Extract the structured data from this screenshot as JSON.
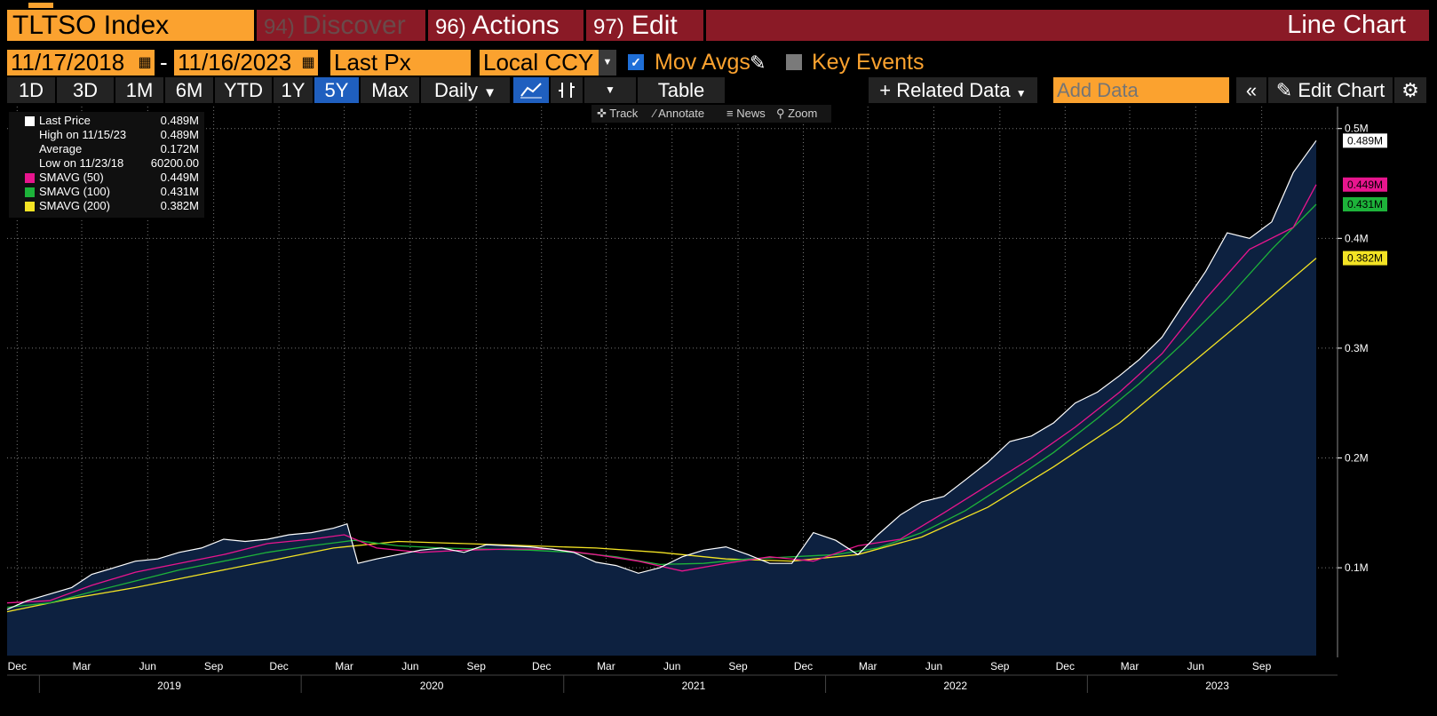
{
  "header": {
    "ticker": "TLTSO Index",
    "menus": [
      {
        "num": "94)",
        "label": "Discover"
      },
      {
        "num": "96)",
        "label": "Actions"
      },
      {
        "num": "97)",
        "label": "Edit"
      }
    ],
    "chart_type": "Line Chart"
  },
  "controls": {
    "start_date": "11/17/2018",
    "dash": "-",
    "end_date": "11/16/2023",
    "field": "Last Px",
    "currency": "Local CCY",
    "mov_avgs_label": "Mov Avgs",
    "mov_avgs_checked": true,
    "key_events_label": "Key Events",
    "key_events_checked": false
  },
  "toolbar": {
    "ranges": [
      "1D",
      "3D",
      "1M",
      "6M",
      "YTD",
      "1Y",
      "5Y",
      "Max"
    ],
    "active_range": "5Y",
    "frequency": "Daily",
    "table_label": "Table",
    "related_data": "+ Related Data",
    "add_data_placeholder": "Add Data",
    "edit_chart": "Edit Chart"
  },
  "chart_tools": [
    "Track",
    "Annotate",
    "News",
    "Zoom"
  ],
  "colors": {
    "accent": "#fba22f",
    "menu_bg": "#8a1a26",
    "area_fill": "#0d2140",
    "price_line": "#ffffff",
    "sma50": "#e8158e",
    "sma100": "#1db33a",
    "sma200": "#f3e324"
  },
  "chart_data": {
    "type": "line",
    "x_range": [
      "2018-11-17",
      "2023-11-16"
    ],
    "ylim": [
      20000,
      520000
    ],
    "y_ticks": [
      "0.5M",
      "0.4M",
      "0.3M",
      "0.2M",
      "0.1M"
    ],
    "y_tick_values": [
      500000,
      400000,
      300000,
      200000,
      100000
    ],
    "x_tick_labels": [
      "Dec",
      "Mar",
      "Jun",
      "Sep",
      "Dec",
      "Mar",
      "Jun",
      "Sep",
      "Dec",
      "Mar",
      "Jun",
      "Sep",
      "Dec",
      "Mar",
      "Jun",
      "Sep",
      "Dec",
      "Mar",
      "Jun",
      "Sep"
    ],
    "x_tick_dates": [
      "2018-12-01",
      "2019-03-01",
      "2019-06-01",
      "2019-09-01",
      "2019-12-01",
      "2020-03-01",
      "2020-06-01",
      "2020-09-01",
      "2020-12-01",
      "2021-03-01",
      "2021-06-01",
      "2021-09-01",
      "2021-12-01",
      "2022-03-01",
      "2022-06-01",
      "2022-09-01",
      "2022-12-01",
      "2023-03-01",
      "2023-06-01",
      "2023-09-01"
    ],
    "year_labels": [
      "2019",
      "2020",
      "2021",
      "2022",
      "2023"
    ],
    "year_label_dates": [
      "2019-07-01",
      "2020-07-01",
      "2021-07-01",
      "2022-07-01",
      "2023-07-01"
    ],
    "legend": [
      {
        "name": "Last Price",
        "value": "0.489M"
      },
      {
        "name": "High on 11/15/23",
        "value": "0.489M"
      },
      {
        "name": "Average",
        "value": "0.172M"
      },
      {
        "name": "Low on 11/23/18",
        "value": "60200.00"
      },
      {
        "name": "SMAVG (50)",
        "value": "0.449M"
      },
      {
        "name": "SMAVG (100)",
        "value": "0.431M"
      },
      {
        "name": "SMAVG (200)",
        "value": "0.382M"
      }
    ],
    "last_labels": [
      {
        "series": "Last Price",
        "text": "0.489M",
        "value": 489000
      },
      {
        "series": "SMAVG (50)",
        "text": "0.449M",
        "value": 449000
      },
      {
        "series": "SMAVG (100)",
        "text": "0.431M",
        "value": 431000
      },
      {
        "series": "SMAVG (200)",
        "text": "0.382M",
        "value": 382000
      }
    ],
    "series": [
      {
        "name": "Last Price",
        "x": [
          "2018-11-17",
          "2018-12-15",
          "2019-01-15",
          "2019-02-15",
          "2019-03-15",
          "2019-04-15",
          "2019-05-15",
          "2019-06-15",
          "2019-07-15",
          "2019-08-15",
          "2019-09-15",
          "2019-10-15",
          "2019-11-15",
          "2019-12-15",
          "2020-01-15",
          "2020-02-15",
          "2020-03-05",
          "2020-03-20",
          "2020-04-15",
          "2020-05-15",
          "2020-06-15",
          "2020-07-15",
          "2020-08-15",
          "2020-09-15",
          "2020-10-15",
          "2020-11-15",
          "2020-12-15",
          "2021-01-15",
          "2021-02-15",
          "2021-03-15",
          "2021-04-15",
          "2021-05-15",
          "2021-06-15",
          "2021-07-15",
          "2021-08-15",
          "2021-09-15",
          "2021-10-15",
          "2021-11-15",
          "2021-12-15",
          "2022-01-15",
          "2022-02-15",
          "2022-03-15",
          "2022-04-15",
          "2022-05-15",
          "2022-06-15",
          "2022-07-15",
          "2022-08-15",
          "2022-09-15",
          "2022-10-15",
          "2022-11-15",
          "2022-12-15",
          "2023-01-15",
          "2023-02-15",
          "2023-03-15",
          "2023-04-15",
          "2023-05-15",
          "2023-06-15",
          "2023-07-15",
          "2023-08-15",
          "2023-09-15",
          "2023-10-15",
          "2023-11-16"
        ],
        "y": [
          62000,
          70000,
          76000,
          82000,
          94000,
          100000,
          106000,
          108000,
          114000,
          118000,
          126000,
          124000,
          126000,
          130000,
          132000,
          136000,
          140000,
          104000,
          108000,
          112000,
          116000,
          118000,
          114000,
          121000,
          120000,
          119000,
          117000,
          114000,
          105000,
          102000,
          95000,
          100000,
          110000,
          116000,
          119000,
          112000,
          104000,
          104000,
          132000,
          125000,
          112000,
          130000,
          148000,
          160000,
          165000,
          180000,
          196000,
          215000,
          220000,
          232000,
          250000,
          260000,
          275000,
          290000,
          310000,
          340000,
          370000,
          405000,
          400000,
          415000,
          460000,
          489000
        ]
      },
      {
        "name": "SMAVG (50)",
        "x": [
          "2018-11-17",
          "2019-01-15",
          "2019-03-15",
          "2019-05-15",
          "2019-07-15",
          "2019-09-15",
          "2019-11-15",
          "2020-01-15",
          "2020-03-01",
          "2020-04-15",
          "2020-06-15",
          "2020-08-15",
          "2020-10-15",
          "2020-12-15",
          "2021-02-15",
          "2021-04-15",
          "2021-06-15",
          "2021-08-15",
          "2021-10-15",
          "2021-12-15",
          "2022-02-15",
          "2022-04-15",
          "2022-06-15",
          "2022-08-15",
          "2022-10-15",
          "2022-12-15",
          "2023-02-15",
          "2023-04-15",
          "2023-06-15",
          "2023-08-15",
          "2023-10-15",
          "2023-11-16"
        ],
        "y": [
          68000,
          70000,
          84000,
          96000,
          104000,
          112000,
          122000,
          126000,
          130000,
          118000,
          114000,
          116000,
          117000,
          117000,
          112000,
          106000,
          97000,
          104000,
          110000,
          106000,
          120000,
          126000,
          150000,
          175000,
          200000,
          228000,
          260000,
          295000,
          345000,
          390000,
          410000,
          449000
        ]
      },
      {
        "name": "SMAVG (100)",
        "x": [
          "2018-11-17",
          "2019-01-15",
          "2019-03-15",
          "2019-05-15",
          "2019-07-15",
          "2019-09-15",
          "2019-11-15",
          "2020-01-15",
          "2020-03-15",
          "2020-05-15",
          "2020-07-15",
          "2020-09-15",
          "2020-11-15",
          "2021-01-15",
          "2021-03-15",
          "2021-05-15",
          "2021-07-15",
          "2021-09-15",
          "2021-11-15",
          "2022-01-15",
          "2022-03-15",
          "2022-05-15",
          "2022-07-15",
          "2022-09-15",
          "2022-11-15",
          "2023-01-15",
          "2023-03-15",
          "2023-05-15",
          "2023-07-15",
          "2023-09-15",
          "2023-11-16"
        ],
        "y": [
          64000,
          68000,
          78000,
          88000,
          98000,
          106000,
          114000,
          120000,
          125000,
          120000,
          118000,
          117000,
          116000,
          114000,
          110000,
          103000,
          104000,
          108000,
          110000,
          112000,
          118000,
          132000,
          152000,
          178000,
          205000,
          236000,
          268000,
          305000,
          345000,
          390000,
          431000
        ]
      },
      {
        "name": "SMAVG (200)",
        "x": [
          "2018-11-17",
          "2019-02-15",
          "2019-05-15",
          "2019-08-15",
          "2019-11-15",
          "2020-02-15",
          "2020-05-15",
          "2020-08-15",
          "2020-11-15",
          "2021-02-15",
          "2021-05-15",
          "2021-08-15",
          "2021-11-15",
          "2022-02-15",
          "2022-05-15",
          "2022-08-15",
          "2022-11-15",
          "2023-02-15",
          "2023-05-15",
          "2023-08-15",
          "2023-11-16"
        ],
        "y": [
          60000,
          72000,
          82000,
          94000,
          106000,
          118000,
          124000,
          122000,
          120000,
          118000,
          114000,
          108000,
          106000,
          112000,
          128000,
          155000,
          192000,
          232000,
          280000,
          330000,
          382000
        ]
      }
    ]
  }
}
